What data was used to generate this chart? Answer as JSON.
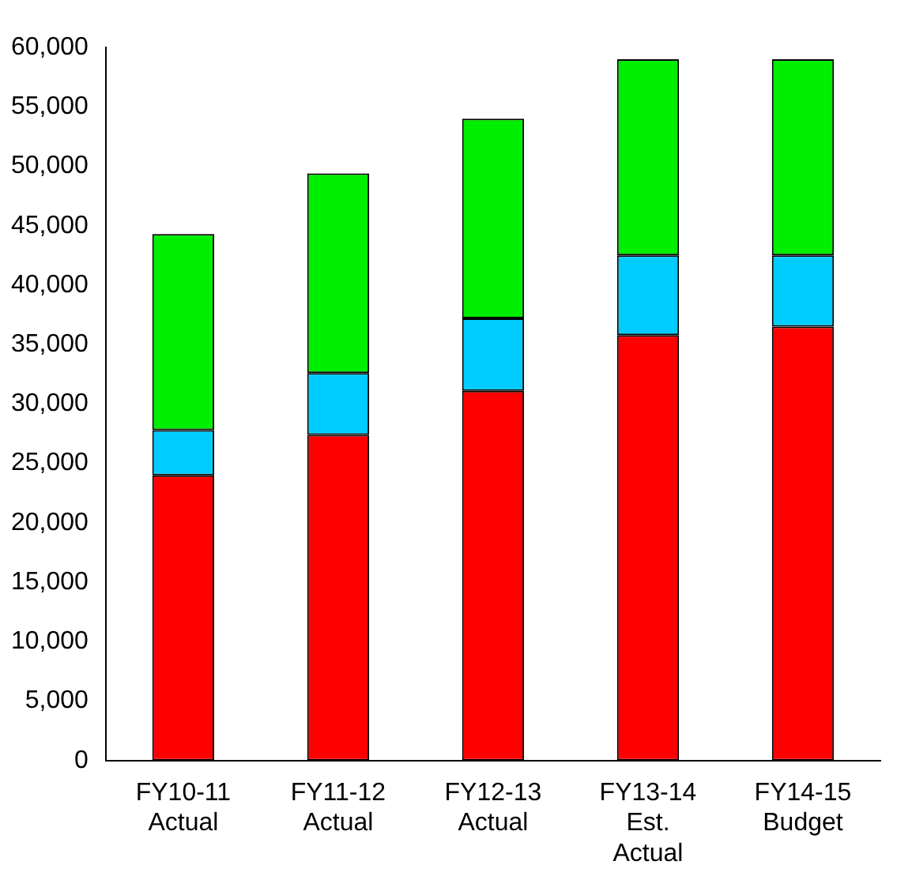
{
  "chart_data": {
    "type": "bar",
    "stacked": true,
    "categories": [
      "FY10-11\nActual",
      "FY11-12\nActual",
      "FY12-13\nActual",
      "FY13-14\nEst.\nActual",
      "FY14-15\nBudget"
    ],
    "series": [
      {
        "color": "#ff0000",
        "values": [
          24000,
          27400,
          31100,
          35800,
          36500
        ]
      },
      {
        "color": "#00ccff",
        "values": [
          3800,
          5200,
          6100,
          6700,
          6000
        ]
      },
      {
        "color": "#00ee00",
        "values": [
          16500,
          16800,
          16800,
          16500,
          16500
        ]
      }
    ],
    "ylim": [
      0,
      60000
    ],
    "yticks": [
      0,
      {
        "value": 5000,
        "label": "5,000"
      },
      {
        "value": 10000,
        "label": "10,000"
      },
      {
        "value": 15000,
        "label": "15,000"
      },
      {
        "value": 20000,
        "label": "20,000"
      },
      {
        "value": 25000,
        "label": "25,000"
      },
      {
        "value": 30000,
        "label": "30,000"
      },
      {
        "value": 35000,
        "label": "35,000"
      },
      {
        "value": 40000,
        "label": "40,000"
      },
      {
        "value": 45000,
        "label": "45,000"
      },
      {
        "value": 50000,
        "label": "50,000"
      },
      {
        "value": 55000,
        "label": "55,000"
      },
      {
        "value": 60000,
        "label": "60,000"
      }
    ],
    "grid": false,
    "legend": false
  }
}
